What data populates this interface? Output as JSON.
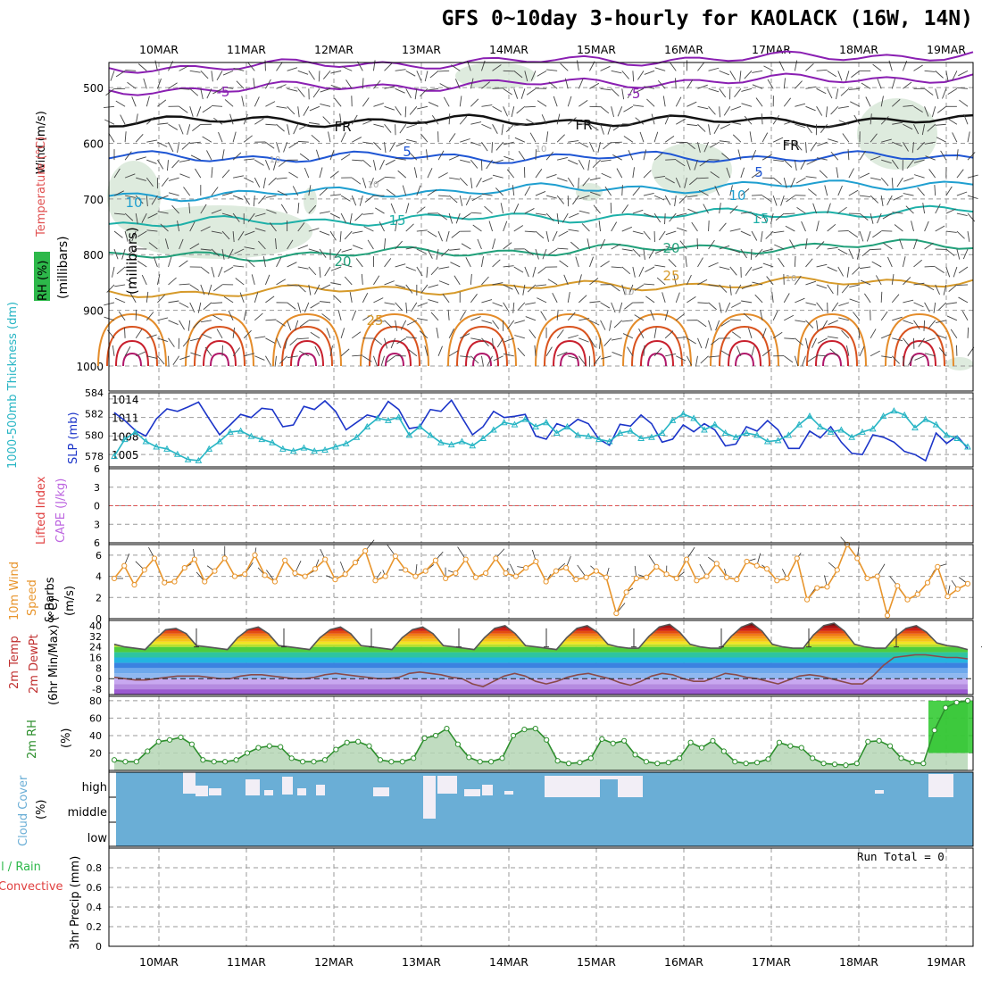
{
  "title": "GFS 0~10day 3-hourly for KAOLACK (16W, 14N)",
  "dates": [
    "10MAR",
    "11MAR",
    "12MAR",
    "13MAR",
    "14MAR",
    "15MAR",
    "16MAR",
    "17MAR",
    "18MAR",
    "19MAR"
  ],
  "run_total": "Run Total = 0",
  "colors": {
    "thickness": "#27b5c4",
    "slp": "#1c35c9",
    "wind": "#e8952c",
    "rh": "#2d8f2d",
    "cloud": "#6aaed6",
    "cape": "#bd66e0",
    "li": "#e04040"
  },
  "chart_data": [
    {
      "type": "contour",
      "panel": "upper-air",
      "ylabel_lines": [
        "Wind (m/s)",
        "Temperature (°C)",
        "RH (%)",
        "(millibars)"
      ],
      "yticks": [
        "500",
        "600",
        "700",
        "800",
        "900",
        "1000"
      ],
      "isotherms": [
        {
          "label": "-5",
          "p": 505,
          "color": "#8a1fb2"
        },
        {
          "label": "FR",
          "p": 560,
          "color": "#111111"
        },
        {
          "label": "5",
          "p": 625,
          "color": "#1f56d4"
        },
        {
          "label": "10",
          "p": 695,
          "color": "#1f9fd0"
        },
        {
          "label": "15",
          "p": 745,
          "color": "#1db0a8"
        },
        {
          "label": "20",
          "p": 805,
          "color": "#21a07a"
        },
        {
          "label": "25",
          "p": 870,
          "color": "#d69a2a"
        }
      ],
      "extra_labels": [
        "-5",
        "5",
        "10",
        "15",
        "20",
        "25",
        "FR",
        "FR",
        "10",
        "10",
        "10",
        "10"
      ]
    },
    {
      "type": "line",
      "panel": "thickness-slp",
      "ylabel_left": "1000-500mb Thickness (dm)",
      "ylabel_right": "SLP (mb)",
      "yticks_left": [
        "578",
        "580",
        "582",
        "584"
      ],
      "yticks_right": [
        "1005",
        "1008",
        "1011",
        "1014"
      ],
      "ylim_left": [
        577,
        584
      ],
      "ylim_right": [
        1003,
        1015
      ],
      "series": [
        {
          "name": "SLP (mb)",
          "values": [
            1011.8,
            1010.5,
            1008.9,
            1008.0,
            1010.8,
            1012.4,
            1012.0,
            1012.7,
            1013.5,
            1010.8,
            1008.2,
            1009.8,
            1011.5,
            1011.0,
            1012.5,
            1012.3,
            1009.5,
            1009.8,
            1012.8,
            1012.3,
            1013.7,
            1012.0,
            1009.0,
            1010.2,
            1011.4,
            1011.0,
            1013.6,
            1012.3,
            1009.2,
            1009.5,
            1012.3,
            1012.0,
            1013.8,
            1011.0,
            1008.2,
            1009.5,
            1012.0,
            1011.0,
            1011.2,
            1011.5,
            1008.0,
            1007.5,
            1010.0,
            1009.4,
            1010.7,
            1010.0,
            1007.5,
            1006.5,
            1009.9,
            1009.6,
            1011.4,
            1010.0,
            1007.0,
            1007.5,
            1009.8,
            1008.7,
            1010.0,
            1009.0,
            1006.4,
            1006.7,
            1009.5,
            1008.8,
            1010.5,
            1009.0,
            1006.0,
            1006.0,
            1008.8,
            1007.7,
            1009.5,
            1007.0,
            1005.2,
            1005.0,
            1008.2,
            1007.8,
            1007.0,
            1005.5,
            1005.0,
            1004.0,
            1008.5,
            1006.8,
            1008.0,
            1006.0
          ]
        },
        {
          "name": "1000-500mb Thickness (dm)",
          "values": [
            578.0,
            579.6,
            580.3,
            579.4,
            578.9,
            578.7,
            578.2,
            577.7,
            577.6,
            578.7,
            579.4,
            580.3,
            580.4,
            579.9,
            579.6,
            579.3,
            578.7,
            578.5,
            578.8,
            578.5,
            578.6,
            578.9,
            579.2,
            579.8,
            580.8,
            581.6,
            581.4,
            581.7,
            580.0,
            580.8,
            580.0,
            579.3,
            579.1,
            579.4,
            579.0,
            579.7,
            580.5,
            581.2,
            581.0,
            581.5,
            580.8,
            581.2,
            580.2,
            580.8,
            580.0,
            579.9,
            579.6,
            579.4,
            580.2,
            580.4,
            579.7,
            579.8,
            580.2,
            581.4,
            582.0,
            581.6,
            580.5,
            581.0,
            580.2,
            579.8,
            580.2,
            580.0,
            579.4,
            579.5,
            580.0,
            581.0,
            581.8,
            580.8,
            580.3,
            580.5,
            579.8,
            580.3,
            580.6,
            581.8,
            582.3,
            581.9,
            580.7,
            581.5,
            581.0,
            580.0,
            579.7,
            578.9
          ]
        }
      ]
    },
    {
      "type": "line",
      "panel": "cape-li",
      "ylabel": "Lifted Index / CAPE (J/kg)",
      "yticks": [
        "-6",
        "-3",
        "0",
        "3",
        "6"
      ],
      "ylim": [
        -6,
        6
      ],
      "series": [
        {
          "name": "Lifted Index",
          "values": []
        }
      ]
    },
    {
      "type": "line",
      "panel": "wind10m",
      "ylabel": "10m Wind Speed (m/s) & Barbs",
      "yticks": [
        "0",
        "2",
        "4",
        "6"
      ],
      "ylim": [
        0,
        7
      ],
      "series": [
        {
          "name": "10m Wind Speed",
          "values": [
            3.8,
            5.0,
            3.2,
            4.6,
            5.7,
            3.4,
            3.5,
            4.8,
            5.6,
            3.5,
            4.5,
            5.7,
            4.0,
            4.2,
            6.0,
            4.1,
            3.5,
            5.5,
            4.3,
            4.0,
            4.7,
            5.6,
            3.7,
            4.2,
            5.3,
            6.4,
            3.6,
            4.0,
            5.9,
            4.6,
            4.0,
            4.5,
            5.5,
            3.8,
            4.3,
            5.6,
            3.9,
            4.3,
            5.7,
            4.3,
            4.0,
            4.8,
            5.4,
            3.5,
            4.5,
            4.8,
            3.7,
            3.9,
            4.5,
            3.9,
            0.5,
            2.5,
            3.8,
            3.9,
            4.9,
            4.2,
            3.8,
            5.6,
            3.6,
            4.0,
            5.2,
            3.9,
            3.7,
            5.4,
            5.0,
            4.7,
            3.6,
            3.8,
            5.7,
            1.8,
            2.9,
            3.0,
            4.6,
            7.0,
            5.7,
            3.8,
            4.0,
            0.3,
            3.1,
            1.8,
            2.3,
            3.4,
            4.9,
            2.1,
            2.8,
            3.3
          ]
        }
      ]
    },
    {
      "type": "area",
      "panel": "temp2m",
      "ylabel": "2m Temp / 2m DewPt (6hr Min/Max) (°C)",
      "yticks": [
        "-8",
        "0",
        "8",
        "16",
        "24",
        "32",
        "40"
      ],
      "ylim": [
        -12,
        44
      ],
      "series": [
        {
          "name": "2m Temp",
          "values": [
            26,
            24,
            23,
            22,
            30,
            37,
            38,
            34,
            25,
            24,
            23,
            22,
            31,
            37,
            39,
            34,
            25,
            24,
            23,
            22,
            31,
            37,
            39,
            34,
            25,
            24,
            23,
            22,
            31,
            37,
            39,
            34,
            25,
            24,
            23,
            22,
            31,
            38,
            40,
            34,
            25,
            24,
            23,
            22,
            31,
            38,
            40,
            35,
            26,
            24,
            23,
            23,
            32,
            39,
            41,
            35,
            26,
            24,
            23,
            23,
            32,
            39,
            42,
            36,
            26,
            24,
            23,
            23,
            33,
            40,
            42,
            36,
            26,
            24,
            23,
            23,
            32,
            38,
            40,
            35,
            27,
            25,
            24,
            22
          ]
        },
        {
          "name": "2m DewPt",
          "values": [
            1,
            0,
            -1,
            -1,
            0,
            1,
            2,
            2,
            2,
            1,
            0,
            0,
            2,
            3,
            3,
            2,
            1,
            0,
            0,
            1,
            3,
            4,
            3,
            2,
            1,
            0,
            0,
            1,
            4,
            5,
            4,
            3,
            1,
            0,
            -4,
            -6,
            -2,
            2,
            4,
            2,
            -2,
            -4,
            -2,
            1,
            3,
            4,
            2,
            0,
            -3,
            -5,
            -2,
            2,
            4,
            3,
            0,
            -2,
            -2,
            1,
            4,
            3,
            1,
            0,
            -2,
            -4,
            -1,
            2,
            3,
            2,
            0,
            -2,
            -4,
            -4,
            2,
            10,
            16,
            17,
            18,
            18,
            17,
            16,
            16,
            15
          ]
        }
      ]
    },
    {
      "type": "area",
      "panel": "rh2m",
      "ylabel": "2m RH (%)",
      "yticks": [
        "20",
        "40",
        "60",
        "80"
      ],
      "ylim": [
        0,
        85
      ],
      "series": [
        {
          "name": "2m RH",
          "values": [
            12,
            10,
            10,
            22,
            33,
            35,
            38,
            30,
            12,
            10,
            10,
            12,
            20,
            26,
            28,
            27,
            14,
            10,
            10,
            12,
            24,
            32,
            33,
            28,
            12,
            10,
            10,
            14,
            37,
            40,
            48,
            30,
            15,
            10,
            10,
            14,
            40,
            47,
            48,
            35,
            11,
            8,
            9,
            14,
            36,
            31,
            34,
            18,
            10,
            8,
            9,
            14,
            32,
            26,
            34,
            22,
            10,
            8,
            9,
            13,
            32,
            28,
            26,
            14,
            8,
            7,
            6,
            8,
            33,
            34,
            28,
            14,
            9,
            8,
            46,
            72,
            78,
            80
          ]
        }
      ]
    },
    {
      "type": "area",
      "panel": "cloud",
      "ylabel": "Cloud Cover (%)",
      "yticks": [
        "high",
        "middle",
        "low"
      ]
    },
    {
      "type": "bar",
      "panel": "precip",
      "ylabel": "3hr Precip (mm)",
      "ylabel_side": "Total / Rain / Convective",
      "yticks": [
        "0",
        "0.2",
        "0.4",
        "0.6",
        "0.8"
      ],
      "ylim": [
        0,
        1
      ],
      "values": []
    }
  ]
}
